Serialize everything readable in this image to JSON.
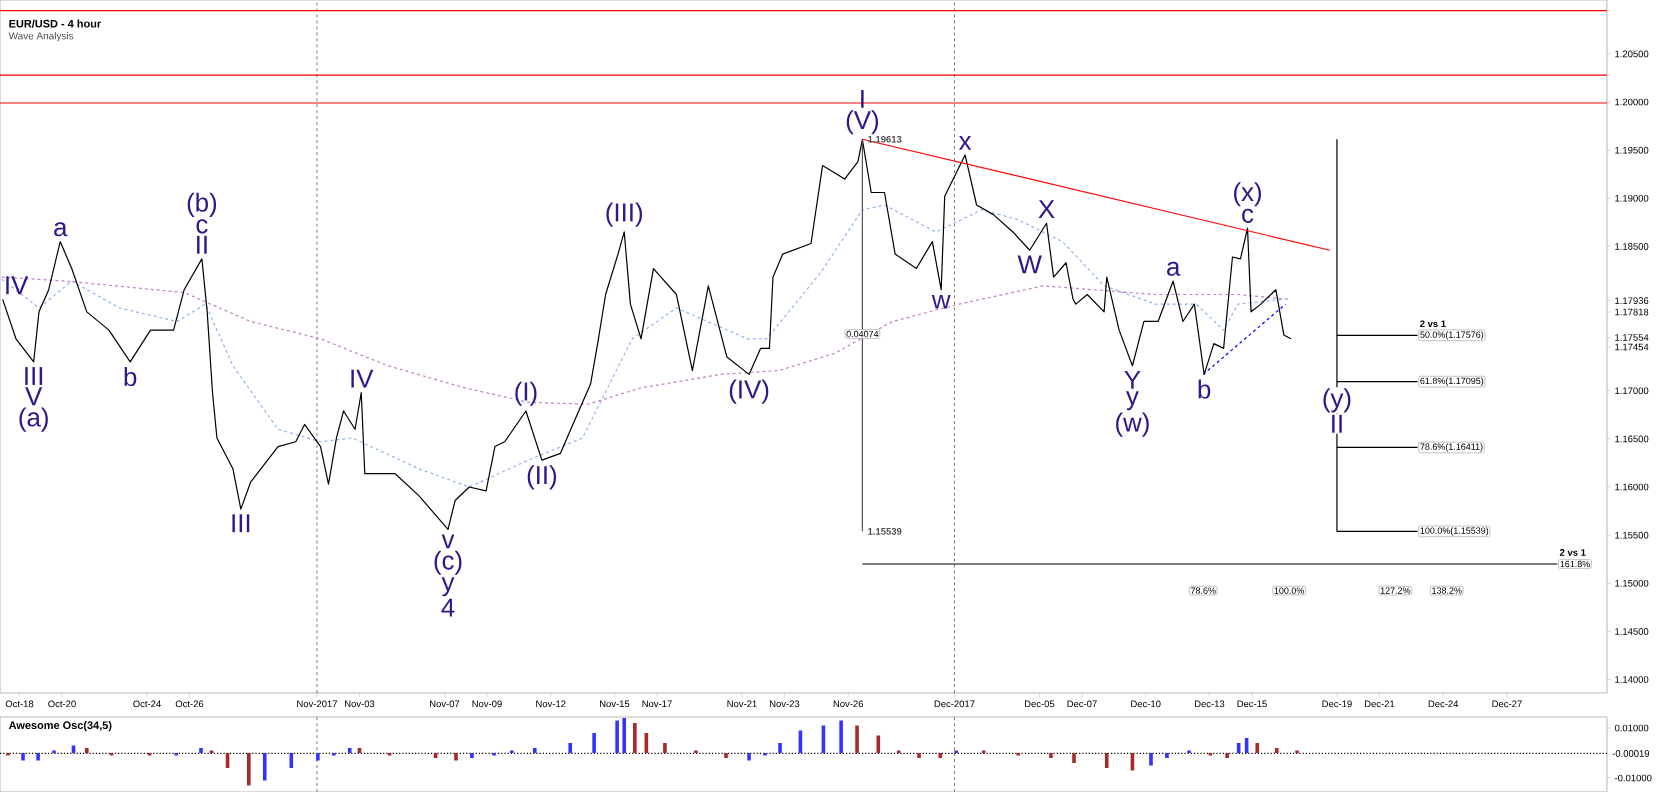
{
  "chart_data": [
    {
      "type": "line",
      "title": "EUR/USD - 4 hour",
      "subtitle": "Wave Analysis",
      "xlim": [
        "2017-10-17T02:00",
        "2017-12-31T17:00"
      ],
      "ylim": [
        1.1386,
        1.2106
      ],
      "xticks": [
        {
          "value": "2017-10-18",
          "label": "Oct-18"
        },
        {
          "value": "2017-10-20",
          "label": "Oct-20"
        },
        {
          "value": "2017-10-24",
          "label": "Oct-24"
        },
        {
          "value": "2017-10-26",
          "label": "Oct-26"
        },
        {
          "value": "2017-11-01",
          "label": "Nov-2017"
        },
        {
          "value": "2017-11-03",
          "label": "Nov-03"
        },
        {
          "value": "2017-11-07",
          "label": "Nov-07"
        },
        {
          "value": "2017-11-09",
          "label": "Nov-09"
        },
        {
          "value": "2017-11-12",
          "label": "Nov-12"
        },
        {
          "value": "2017-11-15",
          "label": "Nov-15"
        },
        {
          "value": "2017-11-17",
          "label": "Nov-17"
        },
        {
          "value": "2017-11-21",
          "label": "Nov-21"
        },
        {
          "value": "2017-11-23",
          "label": "Nov-23"
        },
        {
          "value": "2017-11-26",
          "label": "Nov-26"
        },
        {
          "value": "2017-12-01",
          "label": "Dec-2017"
        },
        {
          "value": "2017-12-05",
          "label": "Dec-05"
        },
        {
          "value": "2017-12-07",
          "label": "Dec-07"
        },
        {
          "value": "2017-12-10",
          "label": "Dec-10"
        },
        {
          "value": "2017-12-13",
          "label": "Dec-13"
        },
        {
          "value": "2017-12-15",
          "label": "Dec-15"
        },
        {
          "value": "2017-12-19",
          "label": "Dec-19"
        },
        {
          "value": "2017-12-21",
          "label": "Dec-21"
        },
        {
          "value": "2017-12-24",
          "label": "Dec-24"
        },
        {
          "value": "2017-12-27",
          "label": "Dec-27"
        }
      ],
      "yticks": [
        {
          "value": 1.205,
          "label": "1.20500"
        },
        {
          "value": 1.2,
          "label": "1.20000"
        },
        {
          "value": 1.195,
          "label": "1.19500"
        },
        {
          "value": 1.19,
          "label": "1.19000"
        },
        {
          "value": 1.185,
          "label": "1.18500"
        },
        {
          "value": 1.17936,
          "label": "1.17936"
        },
        {
          "value": 1.17818,
          "label": "1.17818"
        },
        {
          "value": 1.17554,
          "label": "1.17554"
        },
        {
          "value": 1.17454,
          "label": "1.17454"
        },
        {
          "value": 1.17,
          "label": "1.17000"
        },
        {
          "value": 1.165,
          "label": "1.16500"
        },
        {
          "value": 1.16,
          "label": "1.16000"
        },
        {
          "value": 1.155,
          "label": "1.15500"
        },
        {
          "value": 1.15,
          "label": "1.15000"
        },
        {
          "value": 1.145,
          "label": "1.14500"
        },
        {
          "value": 1.14,
          "label": "1.14000"
        }
      ],
      "series": [
        {
          "type": "line",
          "color": "#8fb4f0",
          "line_style": "dashed",
          "x": [
            "2017-10-17T04:00",
            "2017-10-18T22:00",
            "2017-10-20T11:00",
            "2017-10-22T17:00",
            "2017-10-25T10:00",
            "2017-10-26T18:00",
            "2017-10-28T01:00",
            "2017-10-30T04:00",
            "2017-11-01T04:00",
            "2017-11-02T16:00",
            "2017-11-05T19:00",
            "2017-11-08T04:00",
            "2017-11-10T23:00",
            "2017-11-13T12:00",
            "2017-11-15T20:00",
            "2017-11-17T22:00",
            "2017-11-21T06:00",
            "2017-11-22T04:00",
            "2017-11-24T17:00",
            "2017-11-26T16:00",
            "2017-11-27T17:00",
            "2017-11-30T03:00",
            "2017-12-02T07:00",
            "2017-12-03T23:00",
            "2017-12-06T02:00",
            "2017-12-08T01:00",
            "2017-12-10T11:00",
            "2017-12-12T09:00",
            "2017-12-13T16:00",
            "2017-12-14T08:00",
            "2017-12-16T12:00"
          ],
          "values": [
            1.1816,
            1.1786,
            1.1814,
            1.1786,
            1.1772,
            1.179,
            1.1726,
            1.166,
            1.1647,
            1.1651,
            1.1619,
            1.16,
            1.1628,
            1.1651,
            1.1754,
            1.1786,
            1.1754,
            1.1754,
            1.1823,
            1.1888,
            1.1893,
            1.1865,
            1.1888,
            1.1878,
            1.1855,
            1.1809,
            1.179,
            1.179,
            1.1763,
            1.179,
            1.1795
          ]
        },
        {
          "type": "line",
          "color": "#c080c0",
          "line_style": "dashed",
          "x": [
            "2017-10-17T04:00",
            "2017-10-20T04:00",
            "2017-10-25T18:00",
            "2017-10-28T21:00",
            "2017-11-01T04:00",
            "2017-11-04T08:00",
            "2017-11-07T23:00",
            "2017-11-10T23:00",
            "2017-11-13T18:00",
            "2017-11-16T06:00",
            "2017-11-20T00:00",
            "2017-11-22T18:00",
            "2017-11-25T09:00",
            "2017-11-28T02:00",
            "2017-12-01T05:00",
            "2017-12-05T04:00",
            "2017-12-10T11:00",
            "2017-12-14T08:00",
            "2017-12-16T18:00"
          ],
          "values": [
            1.1818,
            1.1814,
            1.1802,
            1.1772,
            1.1754,
            1.1726,
            1.1703,
            1.1688,
            1.1686,
            1.1703,
            1.1717,
            1.1721,
            1.1739,
            1.1772,
            1.179,
            1.1809,
            1.18,
            1.18,
            1.1795
          ]
        },
        {
          "type": "line",
          "color": "#000000",
          "x": [
            "2017-10-17T05:00",
            "2017-10-17T20:00",
            "2017-10-18T16:00",
            "2017-10-18T22:00",
            "2017-10-19T09:00",
            "2017-10-19T22:00",
            "2017-10-20T11:00",
            "2017-10-21T04:00",
            "2017-10-22T05:00",
            "2017-10-23T05:00",
            "2017-10-24T04:00",
            "2017-10-25T06:00",
            "2017-10-25T18:00",
            "2017-10-26T14:00",
            "2017-10-26T20:00",
            "2017-10-27T02:00",
            "2017-10-27T07:00",
            "2017-10-28T01:00",
            "2017-10-28T10:00",
            "2017-10-28T21:00",
            "2017-10-30T04:00",
            "2017-10-31T00:00",
            "2017-10-31T10:00",
            "2017-11-01T04:00",
            "2017-11-01T13:00",
            "2017-11-01T22:00",
            "2017-11-02T06:00",
            "2017-11-02T19:00",
            "2017-11-03T02:00",
            "2017-11-03T06:00",
            "2017-11-04T16:00",
            "2017-11-05T19:00",
            "2017-11-07T04:00",
            "2017-11-07T12:00",
            "2017-11-08T04:00",
            "2017-11-08T23:00",
            "2017-11-09T09:00",
            "2017-11-09T20:00",
            "2017-11-10T20:00",
            "2017-11-11T14:00",
            "2017-11-12T11:00",
            "2017-11-13T01:00",
            "2017-11-13T21:00",
            "2017-11-14T05:00",
            "2017-11-14T14:00",
            "2017-11-15T04:00",
            "2017-11-15T11:00",
            "2017-11-15T18:00",
            "2017-11-16T06:00",
            "2017-11-16T20:00",
            "2017-11-17T22:00",
            "2017-11-18T16:00",
            "2017-11-19T10:00",
            "2017-11-20T07:00",
            "2017-11-21T08:00",
            "2017-11-21T21:00",
            "2017-11-22T07:00",
            "2017-11-22T11:00",
            "2017-11-22T22:00",
            "2017-11-24T06:00",
            "2017-11-24T19:00",
            "2017-11-25T20:00",
            "2017-11-26T11:00",
            "2017-11-26T16:00",
            "2017-11-27T02:00",
            "2017-11-27T17:00",
            "2017-11-28T05:00",
            "2017-11-29T05:00",
            "2017-11-29T23:00",
            "2017-11-30T09:00",
            "2017-11-30T13:00",
            "2017-12-01T12:00",
            "2017-12-02T01:00",
            "2017-12-02T20:00",
            "2017-12-03T18:00",
            "2017-12-04T13:00",
            "2017-12-05T08:00",
            "2017-12-05T16:00",
            "2017-12-06T06:00",
            "2017-12-06T14:00",
            "2017-12-06T17:00",
            "2017-12-07T06:00",
            "2017-12-08T01:00",
            "2017-12-08T04:00",
            "2017-12-08T18:00",
            "2017-12-09T09:00",
            "2017-12-09T22:00",
            "2017-12-10T14:00",
            "2017-12-11T07:00",
            "2017-12-11T18:00",
            "2017-12-12T07:00",
            "2017-12-12T18:00",
            "2017-12-13T05:00",
            "2017-12-13T16:00",
            "2017-12-14T02:00",
            "2017-12-14T11:00",
            "2017-12-14T19:00",
            "2017-12-14T23:00",
            "2017-12-15T10:00",
            "2017-12-16T03:00",
            "2017-12-16T12:00",
            "2017-12-16T20:00"
          ],
          "values": [
            1.1795,
            1.1754,
            1.173,
            1.1782,
            1.1805,
            1.1855,
            1.1827,
            1.1782,
            1.1763,
            1.173,
            1.1763,
            1.1763,
            1.1805,
            1.1837,
            1.1782,
            1.1698,
            1.1651,
            1.1619,
            1.1577,
            1.1605,
            1.1642,
            1.1647,
            1.1665,
            1.1642,
            1.1603,
            1.1651,
            1.1679,
            1.166,
            1.1698,
            1.1614,
            1.1614,
            1.1591,
            1.1556,
            1.1586,
            1.16,
            1.1596,
            1.1642,
            1.1647,
            1.1679,
            1.1628,
            1.1635,
            1.1665,
            1.1707,
            1.1749,
            1.18,
            1.1842,
            1.1865,
            1.179,
            1.1754,
            1.1827,
            1.18,
            1.1721,
            1.1809,
            1.1735,
            1.1717,
            1.1744,
            1.1744,
            1.1818,
            1.1842,
            1.1853,
            1.1934,
            1.192,
            1.1938,
            1.1961,
            1.1906,
            1.1906,
            1.1842,
            1.1827,
            1.1855,
            1.1805,
            1.1902,
            1.1945,
            1.1893,
            1.1883,
            1.1865,
            1.1846,
            1.1874,
            1.1818,
            1.1833,
            1.1795,
            1.179,
            1.18,
            1.1782,
            1.1818,
            1.1763,
            1.1726,
            1.1772,
            1.1772,
            1.1814,
            1.1772,
            1.179,
            1.1717,
            1.1749,
            1.1744,
            1.1839,
            1.1837,
            1.1869,
            1.1782,
            1.179,
            1.1805,
            1.1758,
            1.1754
          ]
        },
        {
          "type": "line",
          "color": "#ff0000",
          "x": [
            "2017-11-26T16:00",
            "2017-12-18T16:00"
          ],
          "values": [
            1.19613,
            1.1846
          ]
        },
        {
          "type": "line",
          "color": "#0000ff",
          "line_style": "dashed",
          "x": [
            "2017-12-12T17:00",
            "2017-12-16T14:00"
          ],
          "values": [
            1.1717,
            1.179
          ]
        },
        {
          "type": "line",
          "color": "#555555",
          "x": [
            "2017-11-26T16:00",
            "2017-11-26T16:00"
          ],
          "values": [
            1.19613,
            1.15539
          ]
        },
        {
          "type": "line",
          "color": "#000000",
          "x": [
            "2017-12-19T00:00",
            "2017-12-19T00:00"
          ],
          "values": [
            1.19613,
            1.15539
          ]
        },
        {
          "type": "line",
          "color": "#000000",
          "x": [
            "2017-12-19T00:00",
            "2017-12-22T19:00"
          ],
          "values": [
            1.17576,
            1.17576
          ]
        },
        {
          "type": "line",
          "color": "#000000",
          "x": [
            "2017-12-19T00:00",
            "2017-12-22T19:00"
          ],
          "values": [
            1.17095,
            1.17095
          ]
        },
        {
          "type": "line",
          "color": "#000000",
          "x": [
            "2017-12-19T00:00",
            "2017-12-22T19:00"
          ],
          "values": [
            1.16411,
            1.16411
          ]
        },
        {
          "type": "line",
          "color": "#000000",
          "x": [
            "2017-12-19T00:00",
            "2017-12-22T19:00"
          ],
          "values": [
            1.15539,
            1.15539
          ]
        },
        {
          "type": "line",
          "color": "#000000",
          "x": [
            "2017-11-26T16:00",
            "2017-12-29T09:00"
          ],
          "values": [
            1.152,
            1.152
          ]
        }
      ],
      "ref_lines": [
        {
          "axis": "y",
          "value": 1.2095,
          "color": "#ff0000"
        },
        {
          "axis": "y",
          "value": 1.2028,
          "color": "#ff0000"
        },
        {
          "axis": "y",
          "value": 1.1999,
          "color": "#ff0000"
        },
        {
          "axis": "x",
          "value": "2017-11-01",
          "color": "#555555",
          "line_style": "dashed"
        },
        {
          "axis": "x",
          "value": "2017-12-01",
          "color": "#555555",
          "line_style": "dashed"
        }
      ],
      "annotations": [
        {
          "text": "IV",
          "x": "2017-10-17T05:00",
          "y": 1.1795
        },
        {
          "text": "III",
          "x": "2017-10-18T16:00",
          "y": 1.173
        },
        {
          "text": "V",
          "x": "2017-10-18T16:00",
          "y": 1.173
        },
        {
          "text": "(a)",
          "x": "2017-10-18T16:00",
          "y": 1.173
        },
        {
          "text": "a",
          "x": "2017-10-19T22:00",
          "y": 1.1855
        },
        {
          "text": "b",
          "x": "2017-10-23T05:00",
          "y": 1.173
        },
        {
          "text": "II",
          "x": "2017-10-26T14:00",
          "y": 1.1837
        },
        {
          "text": "c",
          "x": "2017-10-26T14:00",
          "y": 1.1837
        },
        {
          "text": "(b)",
          "x": "2017-10-26T14:00",
          "y": 1.1837
        },
        {
          "text": "III",
          "x": "2017-10-28T10:00",
          "y": 1.1577
        },
        {
          "text": "IV",
          "x": "2017-11-03T02:00",
          "y": 1.1698
        },
        {
          "text": "v",
          "x": "2017-11-07T04:00",
          "y": 1.1556
        },
        {
          "text": "(c)",
          "x": "2017-11-07T04:00",
          "y": 1.1556
        },
        {
          "text": "y",
          "x": "2017-11-07T04:00",
          "y": 1.1556
        },
        {
          "text": "4",
          "x": "2017-11-07T04:00",
          "y": 1.1556
        },
        {
          "text": "(I)",
          "x": "2017-11-10T20:00",
          "y": 1.1679
        },
        {
          "text": "(II)",
          "x": "2017-11-11T14:00",
          "y": 1.1628
        },
        {
          "text": "(III)",
          "x": "2017-11-15T11:00",
          "y": 1.1865
        },
        {
          "text": "(IV)",
          "x": "2017-11-21T08:00",
          "y": 1.1717
        },
        {
          "text": "(V)",
          "x": "2017-11-26T16:00",
          "y": 1.1961
        },
        {
          "text": "I",
          "x": "2017-11-26T16:00",
          "y": 1.1961
        },
        {
          "text": "w",
          "x": "2017-11-30T09:00",
          "y": 1.1805
        },
        {
          "text": "x",
          "x": "2017-12-01T12:00",
          "y": 1.1945
        },
        {
          "text": "W",
          "x": "2017-12-04T13:00",
          "y": 1.1846
        },
        {
          "text": "X",
          "x": "2017-12-05T08:00",
          "y": 1.1874
        },
        {
          "text": "Y",
          "x": "2017-12-09T09:00",
          "y": 1.1726
        },
        {
          "text": "y",
          "x": "2017-12-09T09:00",
          "y": 1.1726
        },
        {
          "text": "(w)",
          "x": "2017-12-09T09:00",
          "y": 1.1726
        },
        {
          "text": "a",
          "x": "2017-12-11T07:00",
          "y": 1.1814
        },
        {
          "text": "b",
          "x": "2017-12-12T18:00",
          "y": 1.1717
        },
        {
          "text": "c",
          "x": "2017-12-14T19:00",
          "y": 1.1869
        },
        {
          "text": "(x)",
          "x": "2017-12-14T19:00",
          "y": 1.1869
        },
        {
          "text": "(y)",
          "x": "2017-12-19T00:00",
          "y": 1.169
        },
        {
          "text": "II",
          "x": "2017-12-19T00:00",
          "y": 1.169
        },
        {
          "text": "50.0%(1.17576)",
          "x": "2017-12-22T19:00",
          "y": 1.17576
        },
        {
          "text": "2 vs 1",
          "x": "2017-12-22T19:00",
          "y": 1.17576
        },
        {
          "text": "61.8%(1.17095)",
          "x": "2017-12-22T19:00",
          "y": 1.17095
        },
        {
          "text": "78.6%(1.16411)",
          "x": "2017-12-22T19:00",
          "y": 1.16411
        },
        {
          "text": "100.0%(1.15539)",
          "x": "2017-12-22T19:00",
          "y": 1.15539
        },
        {
          "text": "78.6%",
          "x": "2017-12-12T17:00",
          "y": 1.152
        },
        {
          "text": "100.0%",
          "x": "2017-12-16T18:00",
          "y": 1.152
        },
        {
          "text": "127.2%",
          "x": "2017-12-21T18:00",
          "y": 1.152
        },
        {
          "text": "138.2%",
          "x": "2017-12-24T04:00",
          "y": 1.152
        },
        {
          "text": "161.8%",
          "x": "2017-12-29T09:00",
          "y": 1.152
        },
        {
          "text": "2 vs 1",
          "x": "2017-12-29T09:00",
          "y": 1.152
        },
        {
          "text": "0.04074",
          "x": "2017-11-26T16:00",
          "y": 1.1759
        },
        {
          "text": "1.19613",
          "x": "2017-11-26T16:00",
          "y": 1.19613
        },
        {
          "text": "1.15539",
          "x": "2017-11-26T16:00",
          "y": 1.15539
        }
      ]
    },
    {
      "type": "bar",
      "title": "Awesome Osc(34,5)",
      "xlim": [
        "2017-10-17T02:00",
        "2017-12-31T17:00"
      ],
      "ylim": [
        -0.0156,
        0.0144
      ],
      "tick_labels": "y",
      "yticks": [
        {
          "value": 0.01,
          "label": "0.01000"
        },
        {
          "value": -0.01,
          "label": "-0.01000"
        }
      ],
      "ref_lines": [
        {
          "axis": "y",
          "value": -0.00019,
          "label": "-0.00019",
          "color": "#000000",
          "line_style": "dotted"
        },
        {
          "axis": "x",
          "value": "2017-11-01",
          "color": "#555555",
          "line_style": "dashed"
        },
        {
          "axis": "x",
          "value": "2017-12-01",
          "color": "#555555",
          "line_style": "dashed"
        }
      ],
      "x": [
        "2017-10-17T11:00",
        "2017-10-18T04:00",
        "2017-10-18T21:00",
        "2017-10-19T15:00",
        "2017-10-20T13:00",
        "2017-10-21T04:00",
        "2017-10-22T08:00",
        "2017-10-24T03:00",
        "2017-10-25T09:00",
        "2017-10-26T13:00",
        "2017-10-27T01:00",
        "2017-10-27T19:00",
        "2017-10-28T19:00",
        "2017-10-29T13:00",
        "2017-10-30T19:00",
        "2017-11-01T01:00",
        "2017-11-01T19:00",
        "2017-11-02T13:00",
        "2017-11-03T00:00",
        "2017-11-04T10:00",
        "2017-11-06T14:00",
        "2017-11-07T13:00",
        "2017-11-08T07:00",
        "2017-11-09T08:00",
        "2017-11-10T04:00",
        "2017-11-11T06:00",
        "2017-11-12T22:00",
        "2017-11-14T01:00",
        "2017-11-15T03:00",
        "2017-11-15T11:00",
        "2017-11-15T23:00",
        "2017-11-16T12:00",
        "2017-11-17T09:00",
        "2017-11-18T20:00",
        "2017-11-20T06:00",
        "2017-11-21T08:00",
        "2017-11-22T02:00",
        "2017-11-22T19:00",
        "2017-11-23T18:00",
        "2017-11-24T20:00",
        "2017-11-25T16:00",
        "2017-11-26T10:00",
        "2017-11-27T10:00",
        "2017-11-28T09:00",
        "2017-11-29T08:00",
        "2017-11-30T08:00",
        "2017-12-01T02:00",
        "2017-12-02T09:00",
        "2017-12-04T00:00",
        "2017-12-05T13:00",
        "2017-12-06T15:00",
        "2017-12-08T04:00",
        "2017-12-09T09:00",
        "2017-12-10T06:00",
        "2017-12-11T00:00",
        "2017-12-12T01:00",
        "2017-12-13T01:00",
        "2017-12-13T20:00",
        "2017-12-14T09:00",
        "2017-12-14T18:00",
        "2017-12-15T06:00",
        "2017-12-16T04:00",
        "2017-12-17T03:00"
      ],
      "values": [
        -0.001,
        -0.003,
        -0.003,
        0.001,
        0.003,
        0.002,
        -0.001,
        -0.001,
        -0.001,
        0.002,
        0.001,
        -0.006,
        -0.013,
        -0.011,
        -0.006,
        -0.003,
        -0.001,
        0.002,
        0.002,
        -0.001,
        -0.002,
        -0.003,
        -0.002,
        -0.001,
        0.001,
        0.002,
        0.004,
        0.008,
        0.013,
        0.014,
        0.012,
        0.008,
        0.004,
        0.001,
        -0.002,
        -0.003,
        -0.001,
        0.004,
        0.009,
        0.011,
        0.013,
        0.011,
        0.007,
        0.001,
        -0.002,
        -0.002,
        0.001,
        0.001,
        -0.001,
        -0.002,
        -0.004,
        -0.006,
        -0.007,
        -0.005,
        -0.002,
        0.001,
        -0.001,
        -0.002,
        0.004,
        0.006,
        0.004,
        0.002,
        0.001
      ],
      "colors": [
        "#a52a2a",
        "#3333ff",
        "#3333ff",
        "#3333ff",
        "#3333ff",
        "#a52a2a",
        "#a52a2a",
        "#a52a2a",
        "#3333ff",
        "#3333ff",
        "#a52a2a",
        "#a52a2a",
        "#a52a2a",
        "#3333ff",
        "#3333ff",
        "#3333ff",
        "#3333ff",
        "#3333ff",
        "#a52a2a",
        "#a52a2a",
        "#a52a2a",
        "#a52a2a",
        "#3333ff",
        "#3333ff",
        "#3333ff",
        "#3333ff",
        "#3333ff",
        "#3333ff",
        "#3333ff",
        "#3333ff",
        "#a52a2a",
        "#a52a2a",
        "#a52a2a",
        "#a52a2a",
        "#a52a2a",
        "#3333ff",
        "#3333ff",
        "#3333ff",
        "#3333ff",
        "#3333ff",
        "#3333ff",
        "#a52a2a",
        "#a52a2a",
        "#a52a2a",
        "#a52a2a",
        "#a52a2a",
        "#3333ff",
        "#a52a2a",
        "#a52a2a",
        "#a52a2a",
        "#a52a2a",
        "#a52a2a",
        "#a52a2a",
        "#3333ff",
        "#3333ff",
        "#3333ff",
        "#a52a2a",
        "#a52a2a",
        "#3333ff",
        "#3333ff",
        "#a52a2a",
        "#a52a2a",
        "#a52a2a"
      ]
    }
  ]
}
